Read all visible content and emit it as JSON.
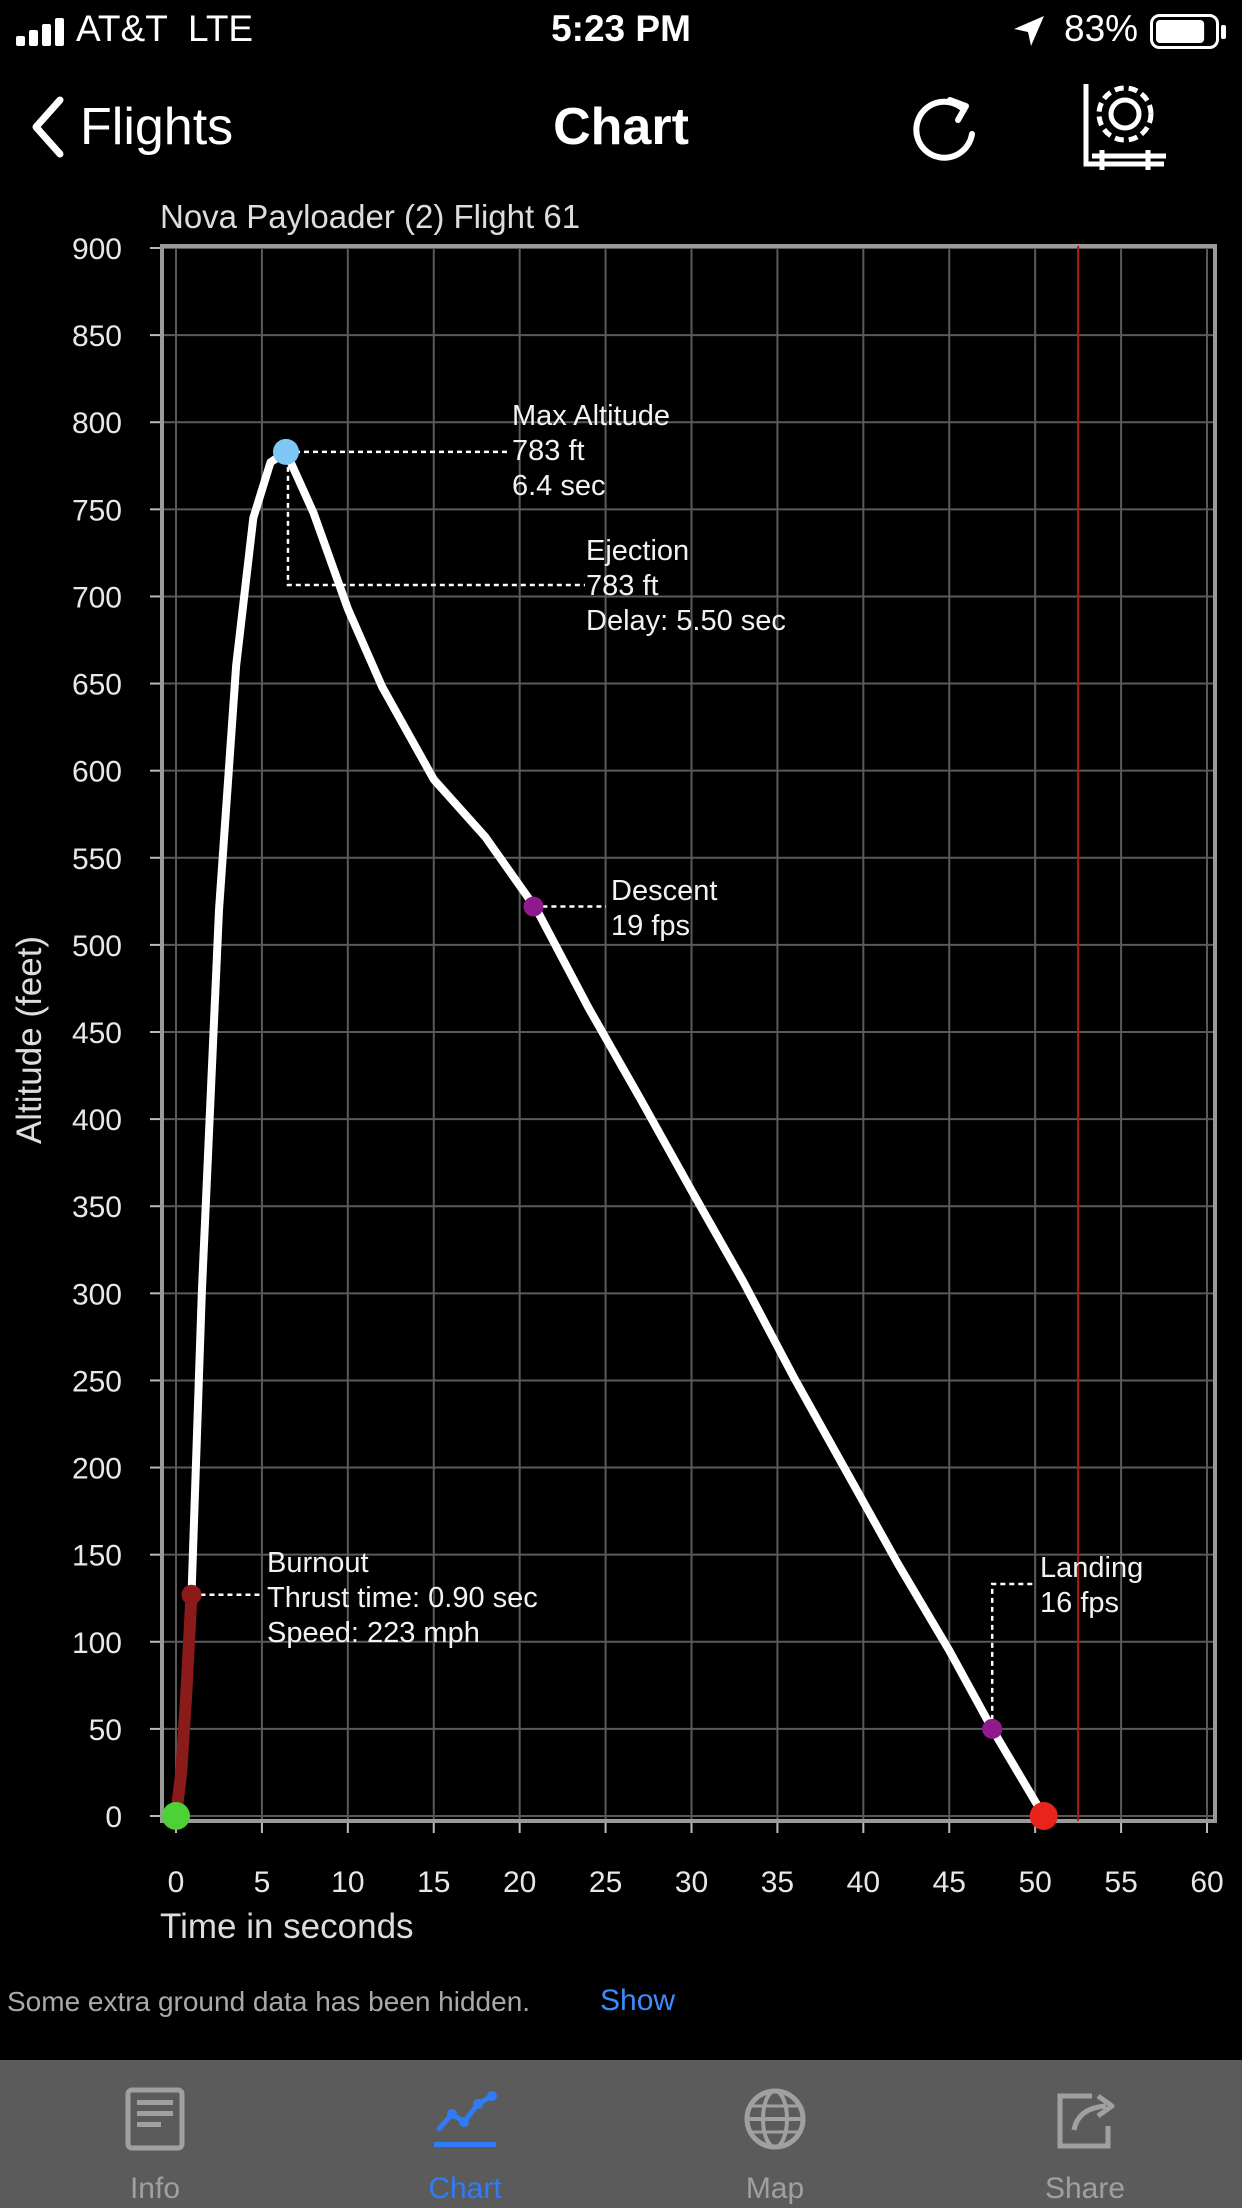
{
  "status": {
    "carrier": "AT&T",
    "network": "LTE",
    "time": "5:23 PM",
    "battery": "83%",
    "battery_fraction": 0.83
  },
  "nav": {
    "back_label": "Flights",
    "title": "Chart"
  },
  "chart_data": {
    "type": "line",
    "title": "Nova Payloader (2) Flight 61",
    "xlabel": "Time in seconds",
    "ylabel": "Altitude (feet)",
    "xlim": [
      0,
      60
    ],
    "ylim": [
      0,
      900
    ],
    "x_ticks": [
      0,
      5,
      10,
      15,
      20,
      25,
      30,
      35,
      40,
      45,
      50,
      55,
      60
    ],
    "y_ticks": [
      0,
      50,
      100,
      150,
      200,
      250,
      300,
      350,
      400,
      450,
      500,
      550,
      600,
      650,
      700,
      750,
      800,
      850,
      900
    ],
    "grid": true,
    "vertical_marker_x": 52.5,
    "series": [
      {
        "color": "#8b1a1a",
        "x": [
          0,
          0.3,
          0.6,
          0.9
        ],
        "y": [
          0,
          25,
          70,
          127
        ]
      },
      {
        "color": "#ffffff",
        "x": [
          0.9,
          1.5,
          2.5,
          3.5,
          4.5,
          5.5,
          6.4,
          8,
          10,
          12,
          15,
          18,
          21,
          24,
          27,
          30,
          33,
          36,
          39,
          42,
          45,
          47.5,
          49,
          50.5
        ],
        "y": [
          127,
          300,
          520,
          660,
          745,
          777,
          783,
          748,
          693,
          648,
          595,
          562,
          520,
          464,
          412,
          359,
          307,
          251,
          198,
          145,
          95,
          50,
          25,
          0
        ]
      }
    ],
    "markers": [
      {
        "name": "launch",
        "x": 0,
        "y": 0,
        "color": "#4cd137"
      },
      {
        "name": "burnout",
        "x": 0.9,
        "y": 127,
        "color": "#8b1a1a"
      },
      {
        "name": "max-altitude",
        "x": 6.4,
        "y": 783,
        "color": "#7ec8f5"
      },
      {
        "name": "descent",
        "x": 20.8,
        "y": 522,
        "color": "#8e1a8e"
      },
      {
        "name": "landing-point",
        "x": 47.5,
        "y": 50,
        "color": "#8e1a8e"
      },
      {
        "name": "touchdown",
        "x": 50.5,
        "y": 0,
        "color": "#e8241b"
      }
    ],
    "annotations": [
      {
        "name": "max-altitude-label",
        "lines": [
          "Max Altitude",
          "783 ft",
          "6.4  sec"
        ]
      },
      {
        "name": "ejection-label",
        "lines": [
          "Ejection",
          "783 ft",
          "Delay:  5.50 sec"
        ]
      },
      {
        "name": "descent-label",
        "lines": [
          "Descent",
          "19 fps"
        ]
      },
      {
        "name": "burnout-label",
        "lines": [
          "Burnout",
          "Thrust time: 0.90 sec",
          "Speed: 223 mph"
        ]
      },
      {
        "name": "landing-label",
        "lines": [
          "Landing",
          "16 fps"
        ]
      }
    ]
  },
  "footer": {
    "note": "Some extra ground data has been hidden.",
    "show_label": "Show"
  },
  "tabs": [
    {
      "label": "Info",
      "icon": "info-icon",
      "active": false
    },
    {
      "label": "Chart",
      "icon": "chart-icon",
      "active": true
    },
    {
      "label": "Map",
      "icon": "globe-icon",
      "active": false
    },
    {
      "label": "Share",
      "icon": "share-icon",
      "active": false
    }
  ]
}
